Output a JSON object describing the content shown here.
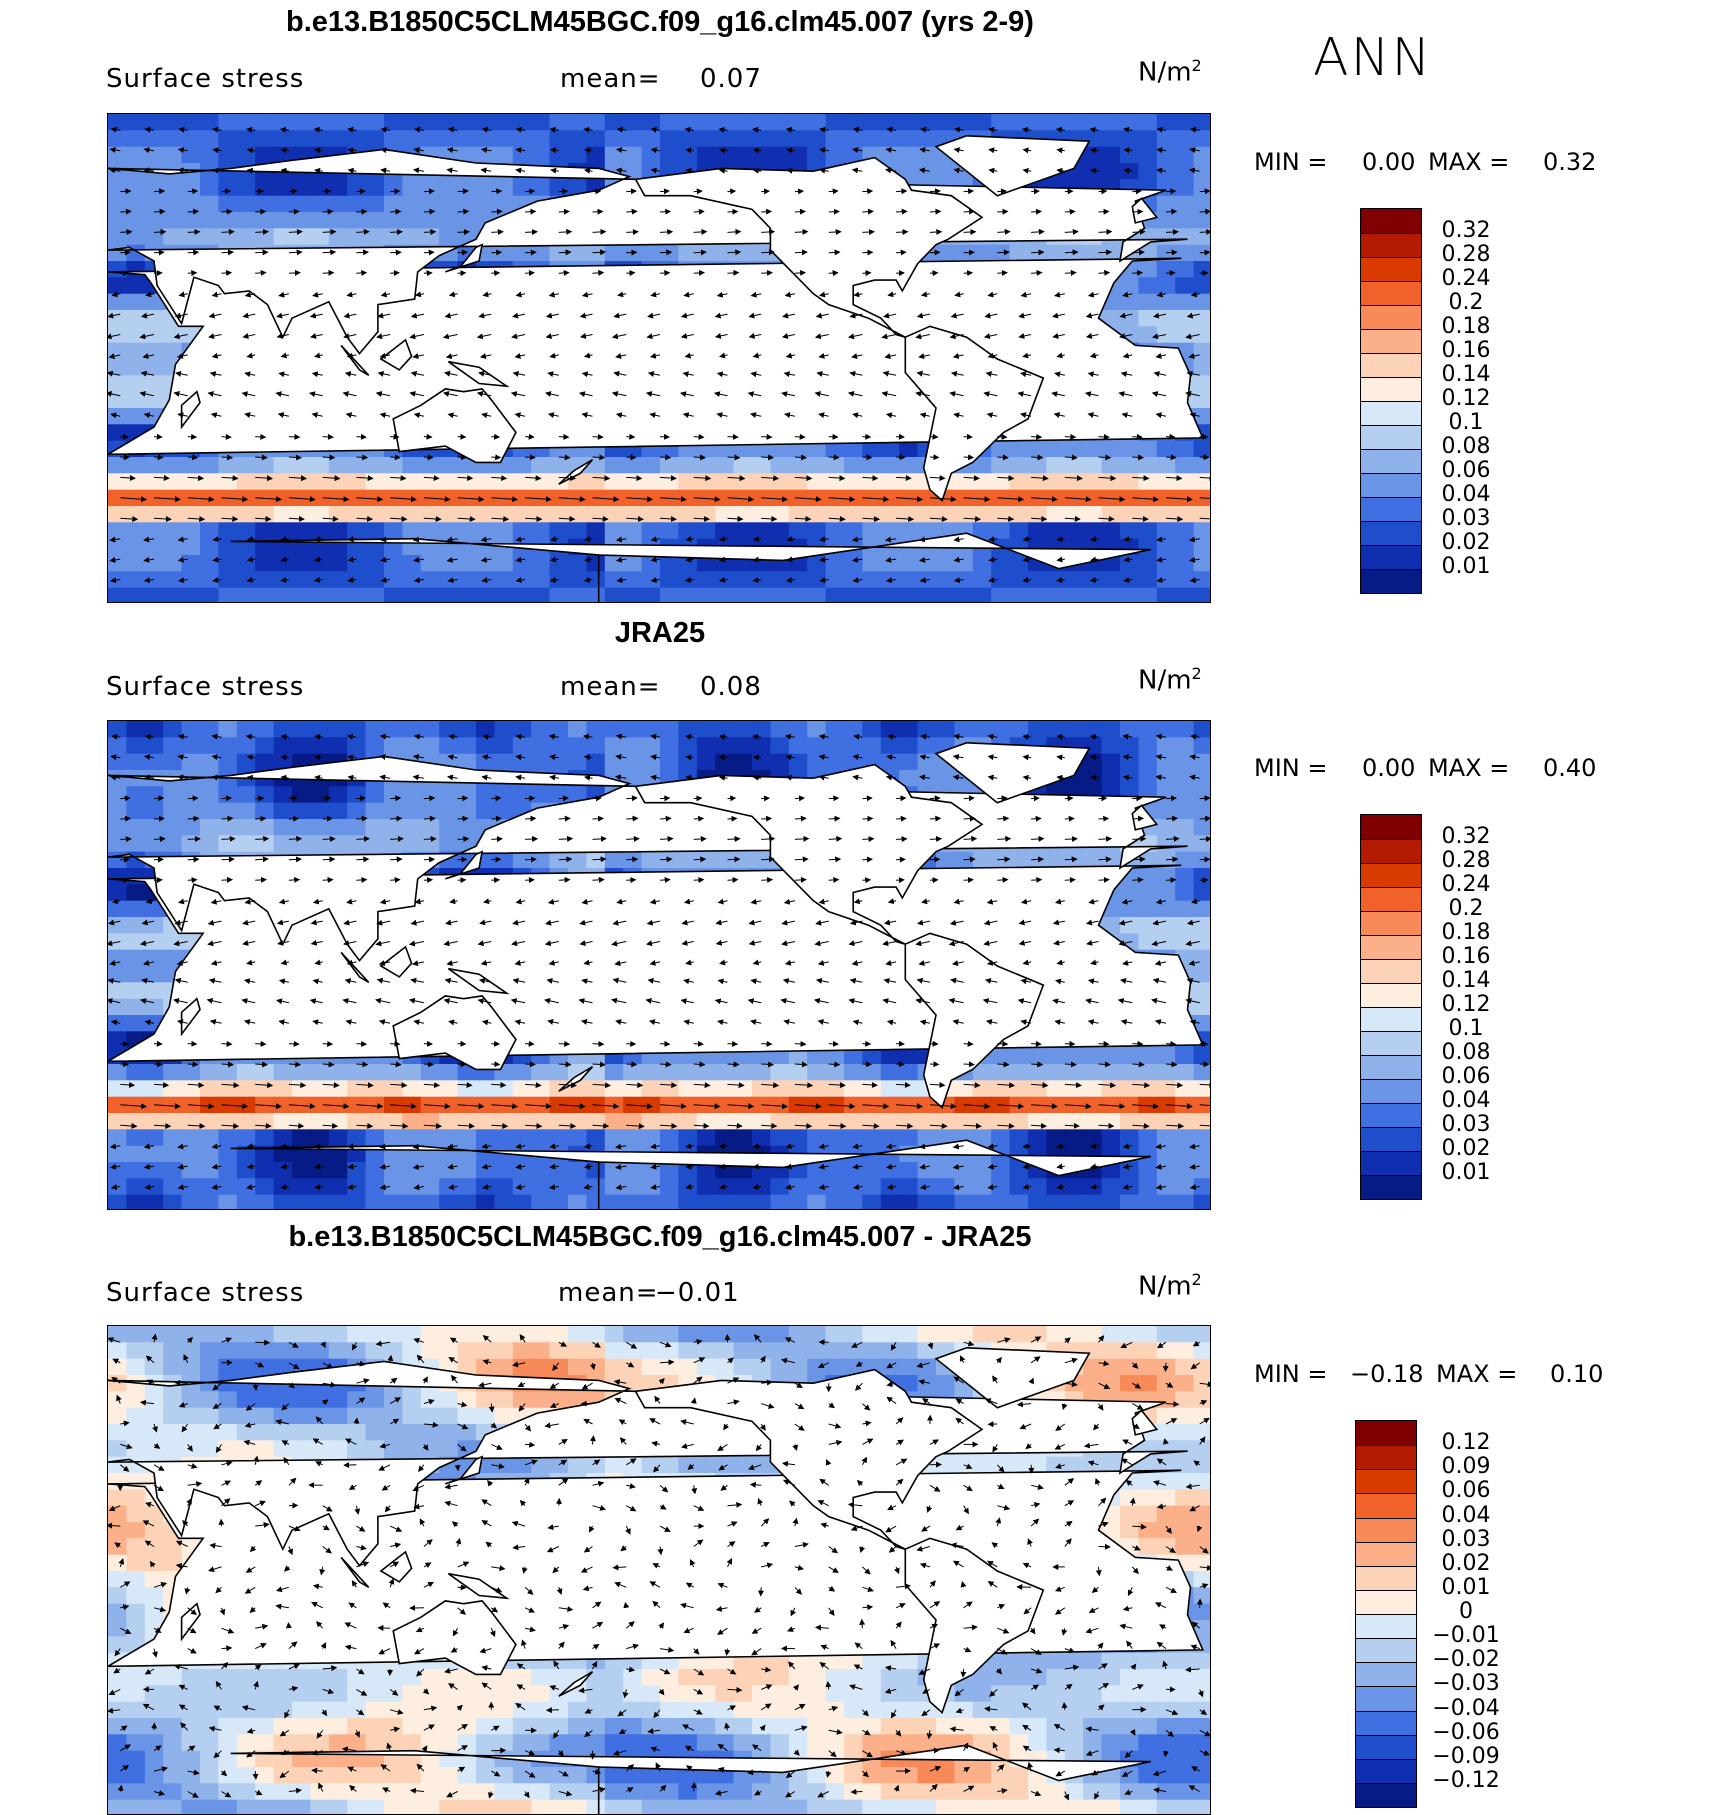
{
  "season": "ANN",
  "panels": [
    {
      "title": "b.e13.B1850C5CLM45BGC.f09_g16.clm45.007 (yrs 2-9)",
      "variable": "Surface stress",
      "mean_label": "mean=",
      "mean_value": "0.07",
      "units": "N/m",
      "units_exp": "2",
      "min_label": "MIN =",
      "min_value": "0.00",
      "max_label": "MAX =",
      "max_value": "0.32",
      "colorbar": {
        "levels": [
          "0.32",
          "0.28",
          "0.24",
          "0.2",
          "0.18",
          "0.16",
          "0.14",
          "0.12",
          "0.1",
          "0.08",
          "0.06",
          "0.04",
          "0.03",
          "0.02",
          "0.01"
        ],
        "colors": [
          "#800000",
          "#b31b00",
          "#d93a00",
          "#f0622a",
          "#f88a5a",
          "#fbb089",
          "#fdd3b8",
          "#fdeee0",
          "#d7e8f8",
          "#b5cff0",
          "#8fb2ea",
          "#6a94e6",
          "#3f6fe0",
          "#1f4ecc",
          "#0f2fb0",
          "#071b86"
        ]
      }
    },
    {
      "title": "JRA25",
      "variable": "Surface stress",
      "mean_label": "mean=",
      "mean_value": "0.08",
      "units": "N/m",
      "units_exp": "2",
      "min_label": "MIN =",
      "min_value": "0.00",
      "max_label": "MAX =",
      "max_value": "0.40",
      "colorbar": {
        "levels": [
          "0.32",
          "0.28",
          "0.24",
          "0.2",
          "0.18",
          "0.16",
          "0.14",
          "0.12",
          "0.1",
          "0.08",
          "0.06",
          "0.04",
          "0.03",
          "0.02",
          "0.01"
        ],
        "colors": [
          "#800000",
          "#b31b00",
          "#d93a00",
          "#f0622a",
          "#f88a5a",
          "#fbb089",
          "#fdd3b8",
          "#fdeee0",
          "#d7e8f8",
          "#b5cff0",
          "#8fb2ea",
          "#6a94e6",
          "#3f6fe0",
          "#1f4ecc",
          "#0f2fb0",
          "#071b86"
        ]
      }
    },
    {
      "title": "b.e13.B1850C5CLM45BGC.f09_g16.clm45.007 - JRA25",
      "variable": "Surface stress",
      "mean_label": "mean=",
      "mean_value": "−0.01",
      "units": "N/m",
      "units_exp": "2",
      "min_label": "MIN =",
      "min_value": "−0.18",
      "max_label": "MAX =",
      "max_value": "0.10",
      "colorbar": {
        "levels": [
          "0.12",
          "0.09",
          "0.06",
          "0.04",
          "0.03",
          "0.02",
          "0.01",
          "0",
          "−0.01",
          "−0.02",
          "−0.03",
          "−0.04",
          "−0.06",
          "−0.09",
          "−0.12"
        ],
        "colors": [
          "#800000",
          "#b31b00",
          "#d93a00",
          "#f0622a",
          "#f88a5a",
          "#fbb089",
          "#fdd3b8",
          "#fdeee0",
          "#d7e8f8",
          "#b5cff0",
          "#8fb2ea",
          "#6a94e6",
          "#3f6fe0",
          "#1f4ecc",
          "#0f2fb0",
          "#071b86"
        ]
      }
    }
  ]
}
